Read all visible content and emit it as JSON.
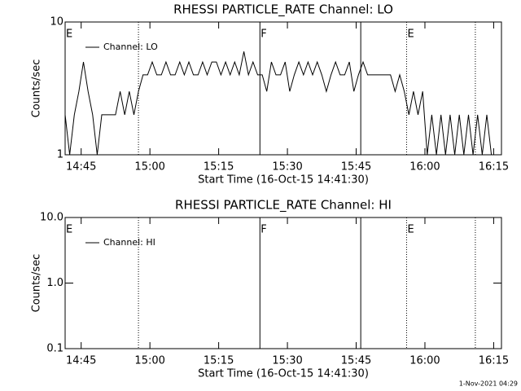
{
  "chart_data": [
    {
      "type": "line",
      "title": "RHESSI PARTICLE_RATE Channel: LO",
      "xlabel": "Start Time (16-Oct-15 14:41:30)",
      "ylabel": "Counts/sec",
      "xlim": [
        881.5,
        976.7
      ],
      "xticks": [
        {
          "value": 885,
          "label": "14:45"
        },
        {
          "value": 900,
          "label": "15:00"
        },
        {
          "value": 915,
          "label": "15:15"
        },
        {
          "value": 930,
          "label": "15:30"
        },
        {
          "value": 945,
          "label": "15:45"
        },
        {
          "value": 960,
          "label": "16:00"
        },
        {
          "value": 975,
          "label": "16:15"
        }
      ],
      "ylim": [
        1,
        10
      ],
      "yticks": [
        1,
        10
      ],
      "log_y": true,
      "legend": "upper left",
      "x": [
        881.5,
        882.5,
        883.5,
        884.5,
        885.5,
        886.5,
        887.5,
        888.5,
        889.5,
        890.5,
        891.5,
        892.5,
        893.5,
        894.5,
        895.5,
        896.5,
        897.5,
        898.5,
        899.5,
        900.5,
        901.5,
        902.5,
        903.5,
        904.5,
        905.5,
        906.5,
        907.5,
        908.5,
        909.5,
        910.5,
        911.5,
        912.5,
        913.5,
        914.5,
        915.5,
        916.5,
        917.5,
        918.5,
        919.5,
        920.5,
        921.5,
        922.5,
        923.5,
        924.5,
        925.5,
        926.5,
        927.5,
        928.5,
        929.5,
        930.5,
        931.5,
        932.5,
        933.5,
        934.5,
        935.5,
        936.5,
        937.5,
        938.5,
        939.5,
        940.5,
        941.5,
        942.5,
        943.5,
        944.5,
        945.5,
        946.5,
        947.5,
        948.5,
        949.5,
        950.5,
        951.5,
        952.5,
        953.5,
        954.5,
        955.5,
        956.5,
        957.5,
        958.5,
        959.5,
        960.5,
        961.5,
        962.5,
        963.5,
        964.5,
        965.5,
        966.5,
        967.5,
        968.5,
        969.5,
        970.5,
        971.5,
        972.5,
        973.5,
        974.5,
        975.5,
        976.5
      ],
      "series": [
        {
          "name": "Channel: LO",
          "color": "#000000",
          "values": [
            2,
            1,
            2,
            3,
            5,
            3,
            2,
            1,
            2,
            2,
            2,
            2,
            3,
            2,
            3,
            2,
            3,
            4,
            4,
            5,
            4,
            4,
            5,
            4,
            4,
            5,
            4,
            5,
            4,
            4,
            5,
            4,
            5,
            5,
            4,
            5,
            4,
            5,
            4,
            6,
            4,
            5,
            4,
            4,
            3,
            5,
            4,
            4,
            5,
            3,
            4,
            5,
            4,
            5,
            4,
            5,
            4,
            3,
            4,
            5,
            4,
            4,
            5,
            3,
            4,
            5,
            4,
            4,
            4,
            4,
            4,
            4,
            3,
            4,
            3,
            2,
            3,
            2,
            3,
            1,
            2,
            1,
            2,
            1,
            2,
            1,
            2,
            1,
            2,
            1,
            2,
            1,
            2,
            1,
            1,
            1
          ]
        }
      ],
      "marker_lines": [
        {
          "x": 897.5,
          "style": "dotted"
        },
        {
          "x": 924,
          "style": "solid"
        },
        {
          "x": 946,
          "style": "solid"
        },
        {
          "x": 956,
          "style": "dotted"
        },
        {
          "x": 971,
          "style": "dotted"
        }
      ],
      "marker_labels": [
        {
          "x": 881.5,
          "text": "E"
        },
        {
          "x": 924,
          "text": "F"
        },
        {
          "x": 956,
          "text": "E"
        }
      ]
    },
    {
      "type": "line",
      "title": "RHESSI PARTICLE_RATE Channel: HI",
      "xlabel": "Start Time (16-Oct-15 14:41:30)",
      "ylabel": "Counts/sec",
      "xlim": [
        881.5,
        976.7
      ],
      "xticks": [
        {
          "value": 885,
          "label": "14:45"
        },
        {
          "value": 900,
          "label": "15:00"
        },
        {
          "value": 915,
          "label": "15:15"
        },
        {
          "value": 930,
          "label": "15:30"
        },
        {
          "value": 945,
          "label": "15:45"
        },
        {
          "value": 960,
          "label": "16:00"
        },
        {
          "value": 975,
          "label": "16:15"
        }
      ],
      "ylim": [
        0.1,
        10
      ],
      "yticks": [
        0.1,
        {
          "value": 1,
          "label": "1.0"
        },
        {
          "value": 10,
          "label": "10.0"
        }
      ],
      "log_y": true,
      "legend": "upper left",
      "x": [],
      "series": [
        {
          "name": "Channel: HI",
          "color": "#000000",
          "values": []
        }
      ],
      "marker_lines": [
        {
          "x": 897.5,
          "style": "dotted"
        },
        {
          "x": 924,
          "style": "solid"
        },
        {
          "x": 946,
          "style": "solid"
        },
        {
          "x": 956,
          "style": "dotted"
        },
        {
          "x": 971,
          "style": "dotted"
        }
      ],
      "marker_labels": [
        {
          "x": 881.5,
          "text": "E"
        },
        {
          "x": 924,
          "text": "F"
        },
        {
          "x": 956,
          "text": "E"
        }
      ]
    }
  ],
  "footer": "1-Nov-2021 04:29"
}
